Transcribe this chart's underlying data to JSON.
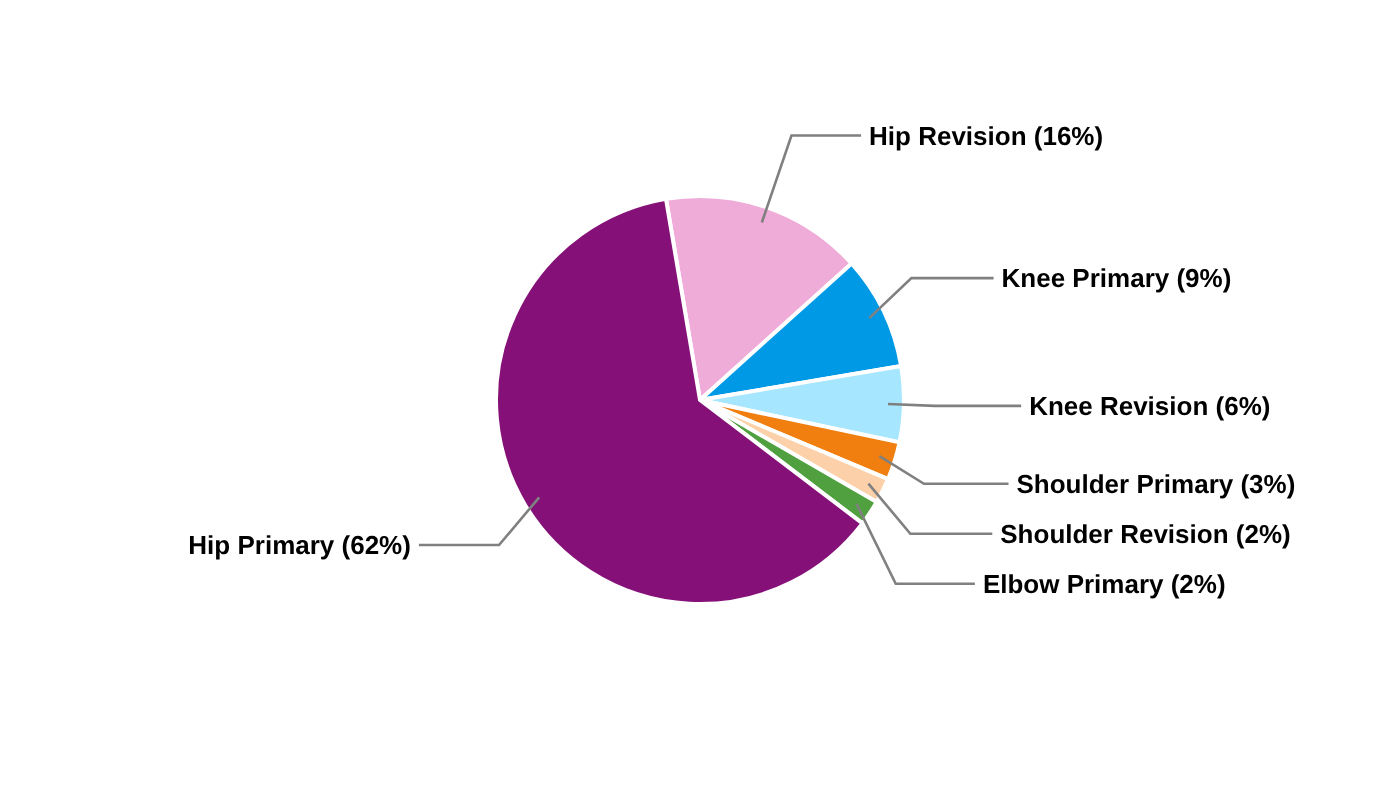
{
  "chart_data": {
    "type": "pie",
    "categories": [
      "Hip Revision (16%)",
      "Knee Primary (9%)",
      "Knee Revision (6%)",
      "Shoulder Primary (3%)",
      "Shoulder Revision (2%)",
      "Elbow Primary (2%)",
      "Hip Primary (62%)"
    ],
    "values": [
      16,
      9,
      6,
      3,
      2,
      2,
      62
    ],
    "colors": [
      "#f0acd8",
      "#0099e6",
      "#a6e6ff",
      "#f07f10",
      "#fcd0a8",
      "#50a040",
      "#841078"
    ]
  }
}
